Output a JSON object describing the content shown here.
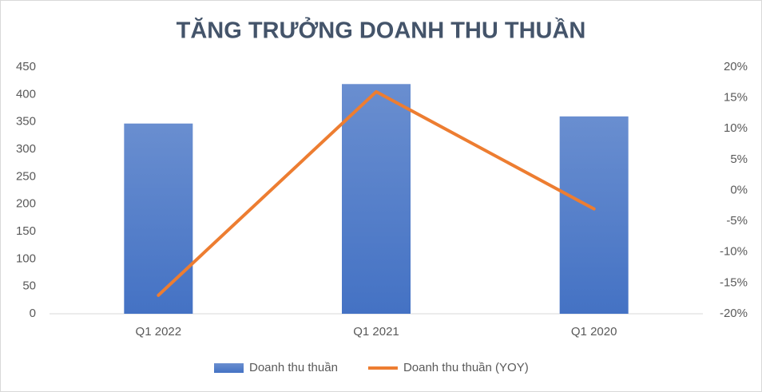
{
  "chart_data": {
    "type": "combo",
    "title": "TĂNG TRƯỞNG DOANH THU THUẦN",
    "categories": [
      "Q1 2022",
      "Q1 2021",
      "Q1 2020"
    ],
    "series": [
      {
        "name": "Doanh thu thuần",
        "type": "bar",
        "color": "#4472c4",
        "values": [
          347,
          419,
          360
        ]
      },
      {
        "name": "Doanh thu thuần (YOY)",
        "type": "line",
        "axis": "y2",
        "color": "#ed7d31",
        "values": [
          -17,
          16,
          -3
        ]
      }
    ],
    "ylim": [
      0,
      450
    ],
    "yticks": [
      0,
      50,
      100,
      150,
      200,
      250,
      300,
      350,
      400,
      450
    ],
    "y2lim": [
      -20,
      20
    ],
    "y2ticks": [
      {
        "value": -20,
        "label": "-20%"
      },
      {
        "value": -15,
        "label": "-15%"
      },
      {
        "value": -10,
        "label": "-10%"
      },
      {
        "value": -5,
        "label": "-5%"
      },
      {
        "value": 0,
        "label": "0%"
      },
      {
        "value": 5,
        "label": "5%"
      },
      {
        "value": 10,
        "label": "10%"
      },
      {
        "value": 15,
        "label": "15%"
      },
      {
        "value": 20,
        "label": "20%"
      }
    ],
    "grid": false,
    "legend": "bottom"
  }
}
